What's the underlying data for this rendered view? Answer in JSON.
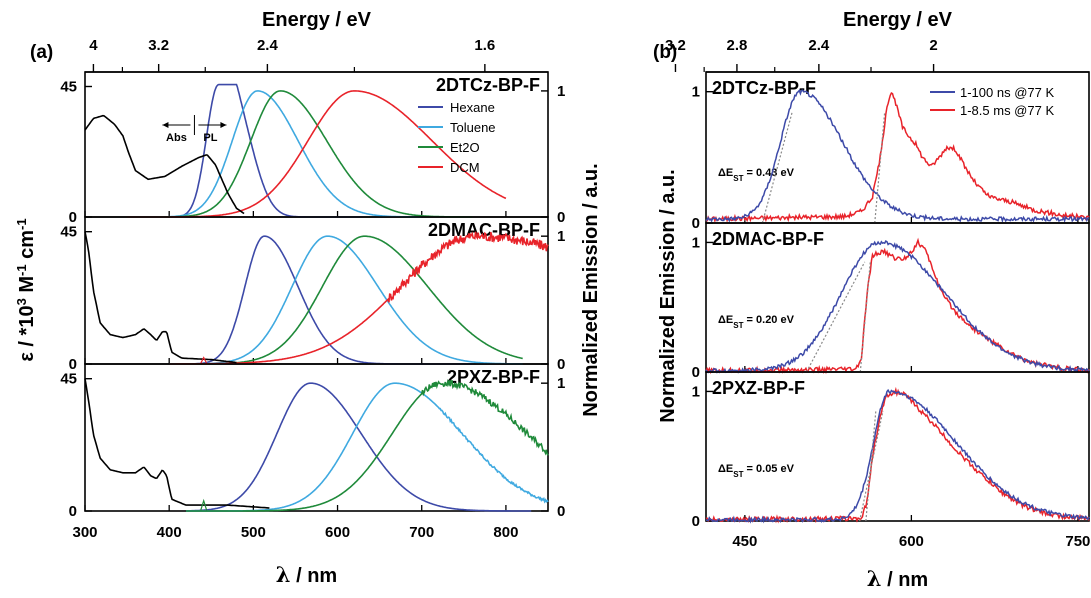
{
  "figure": {
    "panel_labels": [
      "(a)",
      "(b)"
    ]
  },
  "chart_data": [
    {
      "id": "a",
      "type": "line",
      "panel": "(a)",
      "xlabel_symbol": "λ",
      "xlabel_unit": " / nm",
      "xlabel_top": "Energy / eV",
      "ylabel_left_parts": [
        "ε / *10",
        "3",
        " M",
        "-1",
        " cm",
        "-1"
      ],
      "ylabel_right": "Normalized Emission / a.u.",
      "xlim": [
        300,
        850
      ],
      "xticks": [
        300,
        400,
        500,
        600,
        700,
        800
      ],
      "top_ticks": [
        {
          "label": "4",
          "value": 4.0
        },
        {
          "label": "3.2",
          "value": 3.2
        },
        {
          "label": "2.4",
          "value": 2.4
        },
        {
          "label": "1.6",
          "value": 1.6
        }
      ],
      "left_ylim": [
        0,
        50
      ],
      "left_ticks": [
        0,
        45
      ],
      "right_ylim": [
        0,
        1.15
      ],
      "right_ticks": [
        0,
        1
      ],
      "legend": [
        {
          "name": "Hexane",
          "color": "#3d4aa8"
        },
        {
          "name": "Toluene",
          "color": "#3fa9e0"
        },
        {
          "name": "Et2O",
          "color": "#1f8a3a"
        },
        {
          "name": "DCM",
          "color": "#e8232a"
        }
      ],
      "abs_pl_labels": {
        "abs": "Abs",
        "pl": "PL"
      },
      "rows": [
        {
          "compound": "2DTCz-BP-F",
          "absorbance": {
            "color": "#000000",
            "x": [
              300,
              310,
              322,
              335,
              345,
              352,
              360,
              375,
              395,
              415,
              435,
              445,
              455,
              470,
              480,
              490
            ],
            "y": [
              30,
              34,
              35,
              32,
              28,
              22,
              16,
              13,
              14,
              17.5,
              20.5,
              21.5,
              18,
              8,
              3,
              1
            ]
          },
          "emission": [
            {
              "name": "Hexane",
              "peak": 458,
              "w_low": 14,
              "w_high": 18,
              "shoulder": {
                "x": 485,
                "amp": 0.6,
                "w": 20
              },
              "range": [
                350,
                630
              ]
            },
            {
              "name": "Toluene",
              "peak": 505,
              "w_low": 30,
              "w_high": 48,
              "range": [
                350,
                700
              ]
            },
            {
              "name": "Et2O",
              "peak": 532,
              "w_low": 35,
              "w_high": 55,
              "range": [
                350,
                760
              ]
            },
            {
              "name": "DCM",
              "peak": 620,
              "w_low": 55,
              "w_high": 92,
              "range": [
                350,
                800
              ]
            }
          ]
        },
        {
          "compound": "2DMAC-BP-F",
          "absorbance": {
            "color": "#000000",
            "x": [
              300,
              304,
              310,
              318,
              330,
              345,
              360,
              370,
              378,
              385,
              392,
              397,
              403,
              415,
              450,
              480
            ],
            "y": [
              45,
              39,
              25,
              14,
              10,
              9,
              10,
              12,
              10,
              8,
              11,
              11,
              4,
              2,
              1.5,
              0.5
            ]
          },
          "emission": [
            {
              "name": "Hexane",
              "peak": 513,
              "w_low": 23,
              "w_high": 40,
              "range": [
                400,
                760
              ]
            },
            {
              "name": "Toluene",
              "peak": 588,
              "w_low": 42,
              "w_high": 60,
              "range": [
                400,
                820
              ]
            },
            {
              "name": "Et2O",
              "peak": 632,
              "w_low": 50,
              "w_high": 75,
              "range": [
                400,
                820
              ]
            },
            {
              "name": "DCM",
              "peak": 765,
              "w_low": 90,
              "w_high": 200,
              "range": [
                400,
                850
              ]
            }
          ]
        },
        {
          "compound": "2PXZ-BP-F",
          "absorbance": {
            "color": "#000000",
            "x": [
              300,
              304,
              310,
              318,
              330,
              345,
              360,
              370,
              378,
              385,
              392,
              397,
              403,
              420,
              470,
              520
            ],
            "y": [
              45,
              38,
              26,
              18,
              14,
              13,
              13,
              15,
              12,
              11,
              14,
              12,
              4,
              2,
              2,
              1
            ]
          },
          "emission": [
            {
              "name": "Hexane",
              "peak": 568,
              "w_low": 40,
              "w_high": 60,
              "range": [
                420,
                830
              ]
            },
            {
              "name": "Toluene",
              "peak": 668,
              "w_low": 50,
              "w_high": 80,
              "range": [
                420,
                850
              ]
            },
            {
              "name": "Et2O",
              "peak": 725,
              "w_low": 60,
              "w_high": 100,
              "range": [
                420,
                850
              ]
            }
          ]
        }
      ]
    },
    {
      "id": "b",
      "type": "line",
      "panel": "(b)",
      "xlabel_symbol": "λ",
      "xlabel_unit": " / nm",
      "xlabel_top": "Energy / eV",
      "ylabel_left": "Normalized Emission / a.u.",
      "xlim": [
        415,
        760
      ],
      "xticks": [
        450,
        600,
        750
      ],
      "top_ticks": [
        {
          "label": "3.2",
          "value": 3.2
        },
        {
          "label": "2.8",
          "value": 2.8
        },
        {
          "label": "2.4",
          "value": 2.4
        },
        {
          "label": "2",
          "value": 2.0
        }
      ],
      "ylim": [
        0,
        1.15
      ],
      "yticks": [
        0,
        1
      ],
      "legend": [
        {
          "name": "1-100 ns @77 K",
          "color": "#3d4aa8"
        },
        {
          "name": "1-8.5 ms @77 K",
          "color": "#e8232a"
        }
      ],
      "rows": [
        {
          "compound": "2DTCz-BP-F",
          "delta_est_label": "ΔE",
          "delta_est_sub": "ST",
          "delta_est_value": " = 0.43 eV",
          "fluorescence": {
            "name": "1-100 ns @77 K",
            "peak": 500,
            "w_low": 18,
            "w_high": 38,
            "baseline": 0.03,
            "range": [
              415,
              760
            ]
          },
          "phosphorescence": {
            "name": "1-8.5 ms @77 K",
            "baseline": 0.03,
            "x": [
              415,
              540,
              555,
              565,
              573,
              578,
              582,
              587,
              592,
              598,
              604,
              610,
              618,
              625,
              632,
              640,
              648,
              658,
              670,
              690,
              710,
              735,
              760
            ],
            "y": [
              0.03,
              0.05,
              0.09,
              0.2,
              0.55,
              0.9,
              1.0,
              0.88,
              0.73,
              0.66,
              0.6,
              0.5,
              0.43,
              0.5,
              0.58,
              0.56,
              0.43,
              0.3,
              0.2,
              0.16,
              0.1,
              0.06,
              0.04
            ]
          }
        },
        {
          "compound": "2DMAC-BP-F",
          "delta_est_label": "ΔE",
          "delta_est_sub": "ST",
          "delta_est_value": " = 0.20 eV",
          "fluorescence": {
            "name": "1-100 ns @77 K",
            "peak": 572,
            "w_low": 35,
            "w_high": 58,
            "baseline": 0.01,
            "range": [
              415,
              760
            ]
          },
          "phosphorescence": {
            "name": "1-8.5 ms @77 K",
            "baseline": 0.01,
            "x": [
              415,
              550,
              555,
              560,
              565,
              575,
              585,
              593,
              600,
              606,
              612,
              620,
              628,
              640,
              655,
              670,
              690,
              710,
              735,
              760
            ],
            "y": [
              0.01,
              0.02,
              0.1,
              0.6,
              0.9,
              0.93,
              0.88,
              0.87,
              0.93,
              1.0,
              0.95,
              0.78,
              0.6,
              0.46,
              0.34,
              0.25,
              0.14,
              0.07,
              0.03,
              0.01
            ]
          }
        },
        {
          "compound": "2PXZ-BP-F",
          "delta_est_label": "ΔE",
          "delta_est_sub": "ST",
          "delta_est_value": " = 0.05 eV",
          "fluorescence": {
            "name": "1-100 ns @77 K",
            "peak": 580,
            "w_low": 14,
            "w_high": 60,
            "baseline": 0.01,
            "range": [
              415,
              760
            ]
          },
          "phosphorescence": {
            "name": "1-8.5 ms @77 K",
            "baseline": 0.01,
            "x": [
              415,
              555,
              560,
              565,
              572,
              578,
              585,
              595,
              605,
              620,
              640,
              660,
              680,
              700,
              720,
              740,
              760
            ],
            "y": [
              0.01,
              0.02,
              0.15,
              0.5,
              0.82,
              0.97,
              1.0,
              0.97,
              0.88,
              0.75,
              0.55,
              0.38,
              0.23,
              0.12,
              0.06,
              0.03,
              0.02
            ]
          }
        }
      ]
    }
  ]
}
